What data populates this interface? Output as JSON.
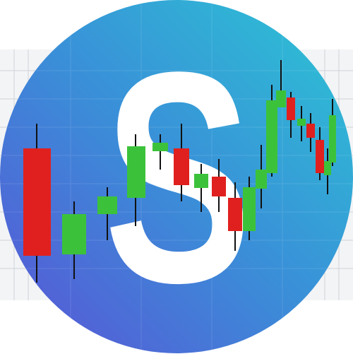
{
  "logo": {
    "letter": "S"
  }
}
